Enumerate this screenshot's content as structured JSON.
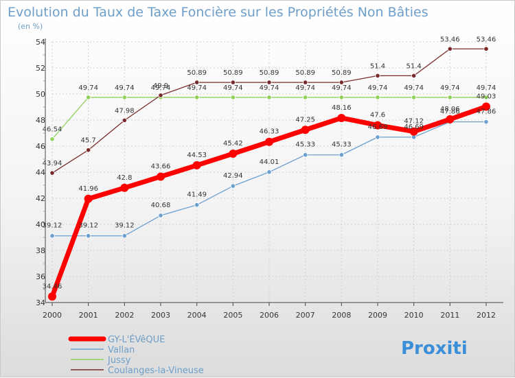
{
  "chart_data": {
    "type": "line",
    "title": "Evolution du Taux de Taxe Foncière sur les Propriétés Non Bâties",
    "subtitle": "(en %)",
    "xlabel": "",
    "ylabel": "",
    "ylim": [
      34,
      54
    ],
    "yticks": [
      34,
      36,
      38,
      40,
      42,
      44,
      46,
      48,
      50,
      52,
      54
    ],
    "x": [
      "2000",
      "2001",
      "2002",
      "2003",
      "2004",
      "2005",
      "2006",
      "2007",
      "2008",
      "2009",
      "2010",
      "2011",
      "2012"
    ],
    "grid": true,
    "legend_position": "bottom-left",
    "series": [
      {
        "name": "GY-L'ÉVêQUE",
        "color": "#ff0000",
        "values": [
          34.46,
          41.96,
          42.8,
          43.66,
          44.53,
          45.42,
          46.33,
          47.25,
          48.16,
          47.6,
          47.12,
          48.06,
          49.03
        ],
        "labels": [
          "34.46",
          "41.96",
          "42.8",
          "43.66",
          "44.53",
          "45.42",
          "46.33",
          "47.25",
          "48.16",
          "47.6",
          "47.12",
          "48.06",
          "49.03"
        ]
      },
      {
        "name": "Vallan",
        "color": "#6a9fd0",
        "values": [
          39.12,
          39.12,
          39.12,
          40.68,
          41.49,
          42.94,
          44.01,
          45.33,
          45.33,
          46.69,
          46.69,
          47.86,
          47.86
        ],
        "labels": [
          "39.12",
          "39.12",
          "39.12",
          "40.68",
          "41.49",
          "42.94",
          "44.01",
          "45.33",
          "45.33",
          "46.69",
          "46.69",
          "47.86",
          "47.86"
        ]
      },
      {
        "name": "Jussy",
        "color": "#8fd15a",
        "values": [
          46.54,
          49.74,
          49.74,
          49.74,
          49.74,
          49.74,
          49.74,
          49.74,
          49.74,
          49.74,
          49.74,
          49.74,
          49.74
        ],
        "labels": [
          "46.54",
          "49.74",
          "49.74",
          "49.74",
          "49.74",
          "49.74",
          "49.74",
          "49.74",
          "49.74",
          "49.74",
          "49.74",
          "49.74",
          "49.74"
        ]
      },
      {
        "name": "Coulanges-la-Vineuse",
        "color": "#7a2a2a",
        "values": [
          43.94,
          45.7,
          47.98,
          49.9,
          50.89,
          50.89,
          50.89,
          50.89,
          50.89,
          51.4,
          51.4,
          53.46,
          53.46
        ],
        "labels": [
          "43.94",
          "45.7",
          "47.98",
          "49.9",
          "50.89",
          "50.89",
          "50.89",
          "50.89",
          "50.89",
          "51.4",
          "51.4",
          "53.46",
          "53.46"
        ]
      }
    ]
  },
  "watermark": {
    "text": "Proxiti"
  }
}
